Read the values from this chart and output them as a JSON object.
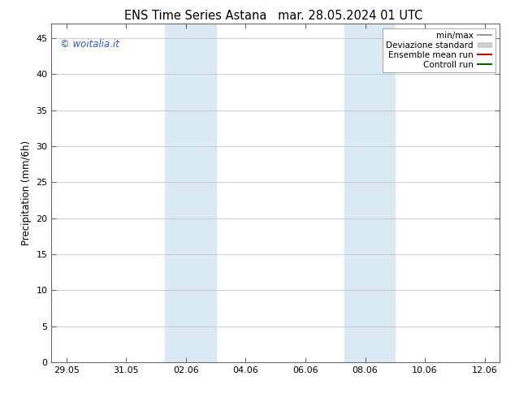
{
  "title_left": "ENS Time Series Astana",
  "title_right": "mar. 28.05.2024 01 UTC",
  "ylabel": "Precipitation (mm/6h)",
  "watermark": "© woitalia.it",
  "xticklabels": [
    "29.05",
    "31.05",
    "02.06",
    "04.06",
    "06.06",
    "08.06",
    "10.06",
    "12.06"
  ],
  "xtick_positions": [
    0,
    2,
    4,
    6,
    8,
    10,
    12,
    14
  ],
  "xlim": [
    -0.5,
    14.5
  ],
  "ylim": [
    0,
    47
  ],
  "yticks": [
    0,
    5,
    10,
    15,
    20,
    25,
    30,
    35,
    40,
    45
  ],
  "shaded_bands": [
    {
      "x_start": 3.3,
      "x_end": 5.0
    },
    {
      "x_start": 9.3,
      "x_end": 11.0
    }
  ],
  "shaded_color": "#daeaf5",
  "legend_entries": [
    {
      "label": "min/max",
      "color": "#999999",
      "lw": 1.5
    },
    {
      "label": "Deviazione standard",
      "color": "#cccccc",
      "lw": 5
    },
    {
      "label": "Ensemble mean run",
      "color": "#cc0000",
      "lw": 1.5
    },
    {
      "label": "Controll run",
      "color": "#006600",
      "lw": 1.5
    }
  ],
  "background_color": "#ffffff",
  "grid_color": "#bbbbbb",
  "title_fontsize": 10.5,
  "axis_fontsize": 8.5,
  "tick_fontsize": 8,
  "watermark_color": "#3355cc",
  "watermark_fontsize": 8.5,
  "legend_fontsize": 7.5
}
